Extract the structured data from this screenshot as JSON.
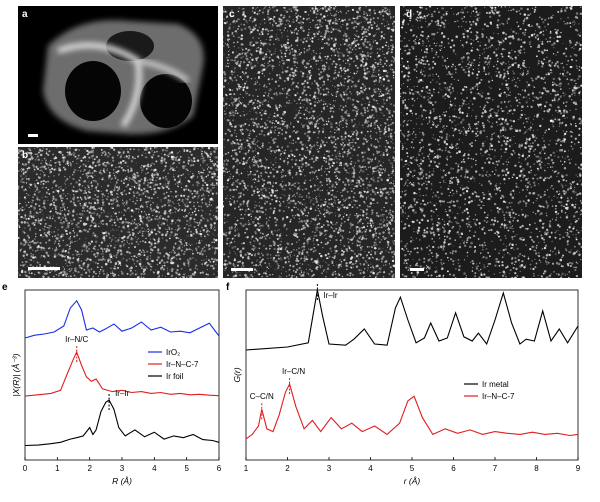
{
  "panels": {
    "a": "a",
    "b": "b",
    "c": "c",
    "d": "d",
    "e": "e",
    "f": "f"
  },
  "chart_data": [
    {
      "panel": "e",
      "type": "line",
      "xlabel": "R (Å)",
      "ylabel": "|X(R)| (Å⁻³)",
      "xlim": [
        0,
        6
      ],
      "x_ticks": [
        "0",
        "1",
        "2",
        "3",
        "4",
        "5",
        "6"
      ],
      "annotations": [
        "Ir–N/C",
        "Ir–Ir"
      ],
      "legend": {
        "placement": "center-right",
        "entries": [
          "IrO₂",
          "Ir–N–C-7",
          "Ir foil"
        ]
      },
      "series": [
        {
          "name": "IrO₂",
          "color": "#1a2ee6",
          "x": [
            0.0,
            0.3,
            0.6,
            0.9,
            1.2,
            1.4,
            1.6,
            1.75,
            1.9,
            2.1,
            2.3,
            2.5,
            2.75,
            3.0,
            3.3,
            3.6,
            3.9,
            4.2,
            4.5,
            4.8,
            5.1,
            5.4,
            5.7,
            6.0
          ],
          "y": [
            0.05,
            0.12,
            0.15,
            0.2,
            0.35,
            0.8,
            0.98,
            0.75,
            0.25,
            0.3,
            0.2,
            0.28,
            0.4,
            0.22,
            0.3,
            0.45,
            0.25,
            0.32,
            0.2,
            0.22,
            0.18,
            0.3,
            0.42,
            0.1
          ]
        },
        {
          "name": "Ir–N–C-7",
          "color": "#e01e1e",
          "x": [
            0.0,
            0.4,
            0.8,
            1.1,
            1.3,
            1.5,
            1.6,
            1.75,
            1.9,
            2.05,
            2.2,
            2.4,
            2.7,
            3.0,
            3.3,
            3.6,
            3.9,
            4.2,
            4.5,
            4.8,
            5.1,
            5.4,
            5.7,
            6.0
          ],
          "y": [
            0.02,
            0.05,
            0.08,
            0.15,
            0.5,
            0.85,
            1.0,
            0.7,
            0.45,
            0.35,
            0.4,
            0.18,
            0.12,
            0.15,
            0.1,
            0.12,
            0.08,
            0.1,
            0.06,
            0.08,
            0.05,
            0.06,
            0.04,
            0.03
          ]
        },
        {
          "name": "Ir foil",
          "color": "#000000",
          "x": [
            0.0,
            0.4,
            0.8,
            1.1,
            1.4,
            1.6,
            1.8,
            2.0,
            2.1,
            2.2,
            2.35,
            2.5,
            2.6,
            2.75,
            2.9,
            3.1,
            3.4,
            3.7,
            4.0,
            4.3,
            4.6,
            4.9,
            5.2,
            5.5,
            5.8,
            6.0
          ],
          "y": [
            0.01,
            0.02,
            0.05,
            0.08,
            0.15,
            0.18,
            0.22,
            0.4,
            0.25,
            0.35,
            0.75,
            0.95,
            1.0,
            0.8,
            0.4,
            0.22,
            0.35,
            0.2,
            0.3,
            0.15,
            0.22,
            0.18,
            0.25,
            0.14,
            0.12,
            0.08
          ]
        }
      ]
    },
    {
      "panel": "f",
      "type": "line",
      "xlabel": "r (Å)",
      "ylabel": "G(r)",
      "xlim": [
        1,
        9
      ],
      "x_ticks": [
        "1",
        "2",
        "3",
        "4",
        "5",
        "6",
        "7",
        "8",
        "9"
      ],
      "annotations": [
        "Ir–Ir",
        "Ir–C/N",
        "C–C/N"
      ],
      "legend": {
        "placement": "center-right",
        "entries": [
          "Ir metal",
          "Ir–N–C-7"
        ]
      },
      "series": [
        {
          "name": "Ir metal",
          "color": "#000000",
          "x": [
            1.0,
            2.0,
            2.5,
            2.62,
            2.72,
            2.85,
            3.0,
            3.4,
            3.6,
            3.85,
            4.1,
            4.4,
            4.6,
            4.72,
            4.9,
            5.1,
            5.3,
            5.45,
            5.65,
            5.85,
            6.05,
            6.25,
            6.45,
            6.6,
            6.8,
            7.0,
            7.2,
            7.4,
            7.6,
            7.75,
            7.95,
            8.15,
            8.35,
            8.55,
            8.75,
            9.0
          ],
          "y": [
            0.0,
            0.05,
            0.12,
            0.6,
            1.0,
            0.55,
            0.1,
            0.08,
            0.18,
            0.35,
            0.1,
            0.08,
            0.7,
            0.88,
            0.5,
            0.12,
            0.2,
            0.45,
            0.15,
            0.2,
            0.62,
            0.22,
            0.15,
            0.28,
            0.1,
            0.5,
            0.95,
            0.45,
            0.1,
            0.18,
            0.15,
            0.65,
            0.15,
            0.35,
            0.12,
            0.4
          ]
        },
        {
          "name": "Ir–N–C-7",
          "color": "#e01e1e",
          "x": [
            1.0,
            1.15,
            1.3,
            1.38,
            1.5,
            1.65,
            1.8,
            1.95,
            2.05,
            2.2,
            2.4,
            2.6,
            2.8,
            3.05,
            3.3,
            3.55,
            3.8,
            4.1,
            4.4,
            4.7,
            4.9,
            5.05,
            5.25,
            5.5,
            5.8,
            6.1,
            6.4,
            6.7,
            7.0,
            7.3,
            7.6,
            7.9,
            8.2,
            8.5,
            8.8,
            9.0
          ],
          "y": [
            0.02,
            0.1,
            0.25,
            0.55,
            0.2,
            0.15,
            0.45,
            0.85,
            1.0,
            0.6,
            0.2,
            0.35,
            0.15,
            0.4,
            0.2,
            0.3,
            0.15,
            0.25,
            0.1,
            0.3,
            0.7,
            0.78,
            0.4,
            0.1,
            0.2,
            0.12,
            0.18,
            0.1,
            0.15,
            0.12,
            0.1,
            0.14,
            0.1,
            0.12,
            0.08,
            0.1
          ]
        }
      ]
    }
  ]
}
